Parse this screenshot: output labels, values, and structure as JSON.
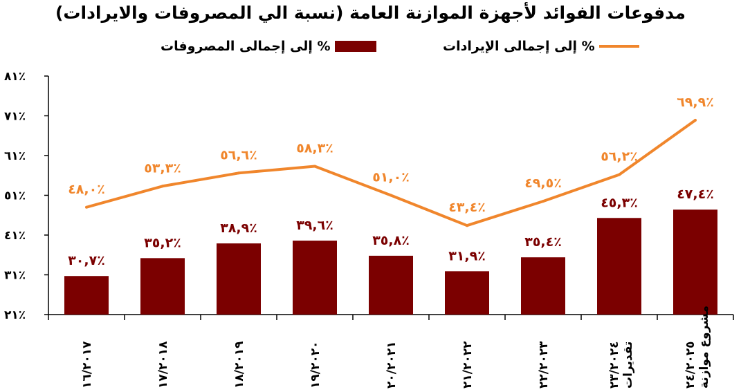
{
  "chart_data": {
    "type": "bar",
    "title": "مدفوعات الفوائد لأجهزة الموازنة العامة (نسبة الي المصروفات والايرادات)",
    "categories": [
      "١٦/٢٠١٧",
      "١٧/٢٠١٨",
      "١٨/٢٠١٩",
      "١٩/٢٠٢٠",
      "٢٠/٢٠٢١",
      "٢١/٢٠٢٢",
      "٢٢/٢٠٢٣",
      "٢٣/٢٠٢٤ تقديرات",
      "٢٤/٢٠٢٥ مشروع موازنة"
    ],
    "series": [
      {
        "name": "% إلى إجمالى المصروفات",
        "kind": "bar",
        "color": "#7b0000",
        "values": [
          30.7,
          35.2,
          38.9,
          39.6,
          35.8,
          31.9,
          35.4,
          45.3,
          47.4
        ],
        "labels": [
          "٣٠,٧٪",
          "٣٥,٢٪",
          "٣٨,٩٪",
          "٣٩,٦٪",
          "٣٥,٨٪",
          "٣١,٩٪",
          "٣٥,٤٪",
          "٤٥,٣٪",
          "٤٧,٤٪"
        ]
      },
      {
        "name": "% إلى إجمالى الإيرادات",
        "kind": "line",
        "color": "#f0862c",
        "values": [
          48.0,
          53.3,
          56.6,
          58.3,
          51.0,
          43.4,
          49.5,
          56.2,
          69.9
        ],
        "labels": [
          "٤٨,٠٪",
          "٥٣,٣٪",
          "٥٦,٦٪",
          "٥٨,٣٪",
          "٥١,٠٪",
          "٤٣,٤٪",
          "٤٩,٥٪",
          "٥٦,٢٪",
          "٦٩,٩٪"
        ]
      }
    ],
    "ylim": [
      21,
      81
    ],
    "yticks": [
      21,
      31,
      41,
      51,
      61,
      71,
      81
    ],
    "ytick_labels": [
      "٢١٪",
      "٣١٪",
      "٤١٪",
      "٥١٪",
      "٦١٪",
      "٧١٪",
      "٨١٪"
    ],
    "grid": false,
    "legend_position": "top"
  }
}
